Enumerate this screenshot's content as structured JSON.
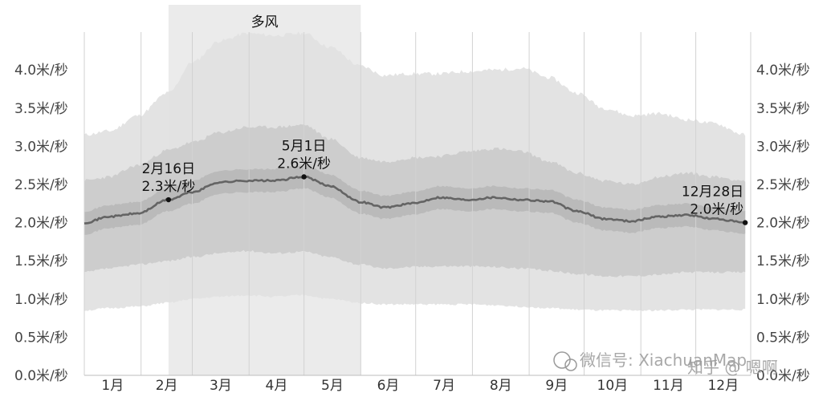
{
  "chart_data": {
    "type": "area",
    "x_unit": "day-of-year",
    "y_ticks": [
      {
        "value": 0.0,
        "label": "0.0米/秒"
      },
      {
        "value": 0.5,
        "label": "0.5米/秒"
      },
      {
        "value": 1.0,
        "label": "1.0米/秒"
      },
      {
        "value": 1.5,
        "label": "1.5米/秒"
      },
      {
        "value": 2.0,
        "label": "2.0米/秒"
      },
      {
        "value": 2.5,
        "label": "2.5米/秒"
      },
      {
        "value": 3.0,
        "label": "3.0米/秒"
      },
      {
        "value": 3.5,
        "label": "3.5米/秒"
      },
      {
        "value": 4.0,
        "label": "4.0米/秒"
      }
    ],
    "ylim": [
      0,
      4.5
    ],
    "months": [
      "1月",
      "2月",
      "3月",
      "4月",
      "5月",
      "6月",
      "7月",
      "8月",
      "9月",
      "10月",
      "11月",
      "12月"
    ],
    "highlight": {
      "label": "多风",
      "start_day": 47,
      "end_day": 152
    },
    "x": [
      1,
      15,
      30,
      47,
      60,
      75,
      90,
      105,
      121,
      135,
      152,
      165,
      180,
      195,
      210,
      225,
      240,
      255,
      270,
      285,
      300,
      315,
      330,
      345,
      362
    ],
    "series": [
      {
        "role": "p90",
        "values": [
          3.15,
          3.2,
          3.4,
          3.7,
          4.1,
          4.38,
          4.48,
          4.45,
          4.48,
          4.3,
          4.05,
          3.93,
          3.95,
          3.95,
          3.98,
          4.0,
          4.02,
          3.9,
          3.7,
          3.5,
          3.4,
          3.43,
          3.35,
          3.3,
          3.15
        ]
      },
      {
        "role": "p75",
        "values": [
          2.55,
          2.6,
          2.75,
          2.95,
          3.05,
          3.18,
          3.25,
          3.25,
          3.28,
          3.1,
          2.85,
          2.8,
          2.85,
          2.87,
          2.93,
          2.97,
          2.93,
          2.8,
          2.65,
          2.55,
          2.5,
          2.6,
          2.65,
          2.6,
          2.55
        ]
      },
      {
        "role": "median",
        "values": [
          2.0,
          2.08,
          2.12,
          2.3,
          2.4,
          2.53,
          2.55,
          2.55,
          2.6,
          2.48,
          2.27,
          2.2,
          2.25,
          2.33,
          2.3,
          2.33,
          2.3,
          2.28,
          2.15,
          2.05,
          2.02,
          2.08,
          2.1,
          2.05,
          2.0
        ]
      },
      {
        "role": "p25",
        "values": [
          1.35,
          1.4,
          1.45,
          1.5,
          1.55,
          1.6,
          1.63,
          1.6,
          1.62,
          1.55,
          1.45,
          1.4,
          1.42,
          1.43,
          1.43,
          1.42,
          1.4,
          1.37,
          1.33,
          1.3,
          1.3,
          1.32,
          1.35,
          1.35,
          1.35
        ]
      },
      {
        "role": "p10",
        "values": [
          0.85,
          0.88,
          0.9,
          0.95,
          1.0,
          1.03,
          1.05,
          1.03,
          1.05,
          1.0,
          0.95,
          0.93,
          0.93,
          0.93,
          0.93,
          0.92,
          0.9,
          0.88,
          0.86,
          0.85,
          0.85,
          0.85,
          0.86,
          0.86,
          0.86
        ]
      }
    ],
    "annotations": [
      {
        "day": 47,
        "value": 2.3,
        "date": "2月16日",
        "text": "2.3米/秒"
      },
      {
        "day": 121,
        "value": 2.6,
        "date": "5月1日",
        "text": "2.6米/秒"
      },
      {
        "day": 362,
        "value": 2.0,
        "date": "12月28日",
        "text": "2.0米/秒"
      }
    ]
  },
  "watermark": {
    "left": "微信号: XiachuanMap",
    "right": "知乎 @ 嗯啊"
  },
  "colors": {
    "p90_band": "#e1e1e1",
    "p75_band": "#cbcbcb",
    "median_band": "#b9b9b9",
    "highlight": "#ebebeb",
    "median_line": "#646464",
    "grid": "#d2d2d2"
  }
}
